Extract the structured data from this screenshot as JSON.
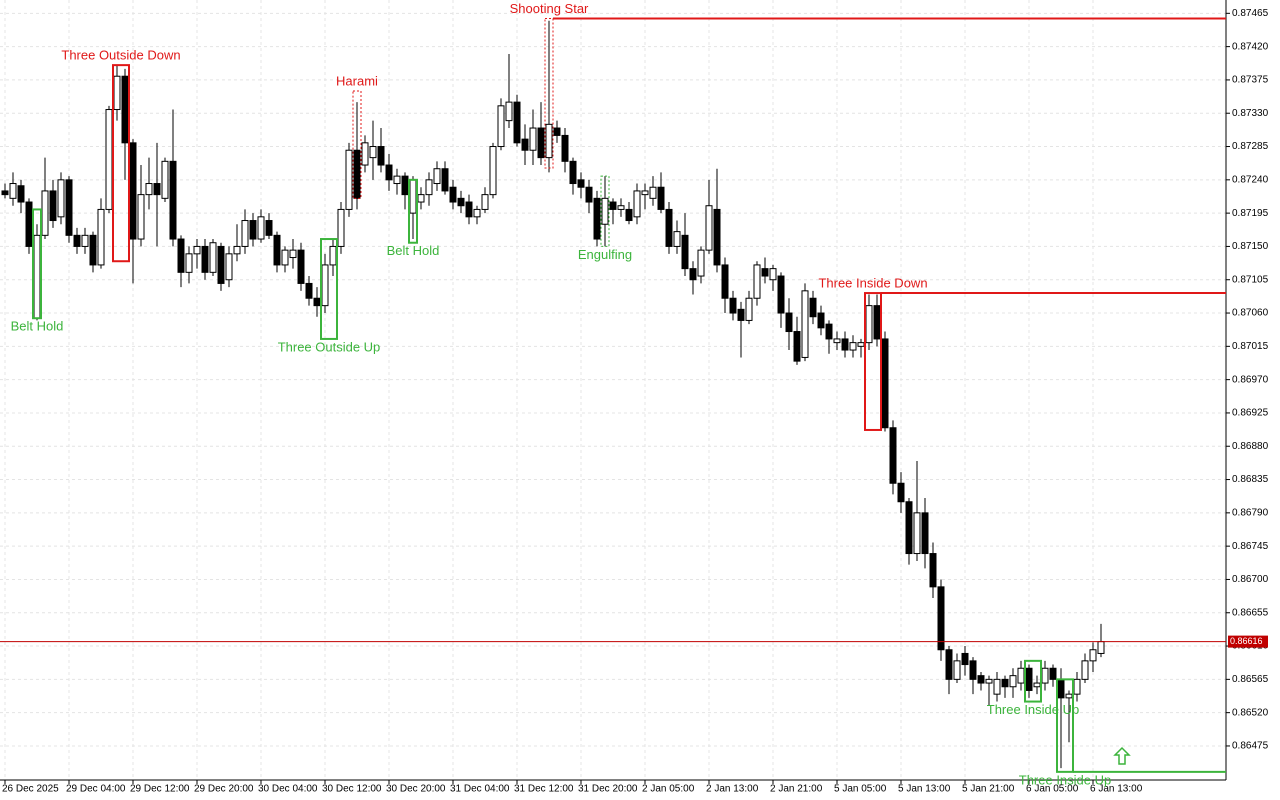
{
  "chart_data": {
    "type": "candlestick",
    "ylim": [
      0.86429,
      0.87483
    ],
    "yticks": [
      0.87465,
      {
        "value": 0.8742,
        "label": "0.87420"
      },
      0.87375,
      {
        "value": 0.8733,
        "label": "0.87330"
      },
      0.87285,
      {
        "value": 0.8724,
        "label": "0.87240"
      },
      0.87195,
      {
        "value": 0.8715,
        "label": "0.87150"
      },
      0.87105,
      {
        "value": 0.8706,
        "label": "0.87060"
      },
      0.87015,
      {
        "value": 0.8697,
        "label": "0.86970"
      },
      0.86925,
      {
        "value": 0.8688,
        "label": "0.86880"
      },
      0.86835,
      {
        "value": 0.8679,
        "label": "0.86790"
      },
      0.86745,
      {
        "value": 0.867,
        "label": "0.86700"
      },
      0.86655,
      {
        "value": 0.8661,
        "label": "0.86610"
      },
      0.86565,
      {
        "value": 0.8652,
        "label": "0.86520"
      },
      0.86475
    ],
    "grid": true,
    "current_price": 0.86616,
    "current_price_color": "#c00000",
    "bull_color": "#ffffff",
    "bear_color": "#000000",
    "categories": [
      "26 Dec 2025",
      null,
      null,
      null,
      null,
      null,
      null,
      null,
      "29 Dec 04:00",
      null,
      null,
      null,
      null,
      null,
      null,
      null,
      "29 Dec 12:00",
      null,
      null,
      null,
      null,
      null,
      null,
      null,
      "29 Dec 20:00",
      null,
      null,
      null,
      null,
      null,
      null,
      null,
      "30 Dec 04:00",
      null,
      null,
      null,
      null,
      null,
      null,
      null,
      "30 Dec 12:00",
      null,
      null,
      null,
      null,
      null,
      null,
      null,
      "30 Dec 20:00",
      null,
      null,
      null,
      null,
      null,
      null,
      null,
      "31 Dec 04:00",
      null,
      null,
      null,
      null,
      null,
      null,
      null,
      "31 Dec 12:00",
      null,
      null,
      null,
      null,
      null,
      null,
      null,
      "31 Dec 20:00",
      null,
      null,
      null,
      null,
      null,
      null,
      null,
      "2 Jan 05:00",
      null,
      null,
      null,
      null,
      null,
      null,
      null,
      "2 Jan 13:00",
      null,
      null,
      null,
      null,
      null,
      null,
      null,
      "2 Jan 21:00",
      null,
      null,
      null,
      null,
      null,
      null,
      null,
      "5 Jan 05:00",
      null,
      null,
      null,
      null,
      null,
      null,
      null,
      "5 Jan 13:00",
      null,
      null,
      null,
      null,
      null,
      null,
      null,
      "5 Jan 21:00",
      null,
      null,
      null,
      null,
      null,
      null,
      null,
      "6 Jan 05:00",
      null,
      null,
      null,
      null,
      null,
      null,
      null,
      "6 Jan 13:00",
      null
    ],
    "candles": [
      [
        0.87225,
        0.87235,
        0.87215,
        0.8722
      ],
      [
        0.87215,
        0.8725,
        0.87205,
        0.87235
      ],
      [
        0.87232,
        0.8724,
        0.87195,
        0.8721
      ],
      [
        0.8721,
        0.87215,
        0.8714,
        0.8715
      ],
      [
        0.87053,
        0.8718,
        0.8705,
        0.87165
      ],
      [
        0.87165,
        0.8727,
        0.8716,
        0.87225
      ],
      [
        0.87225,
        0.8724,
        0.87175,
        0.87185
      ],
      [
        0.8719,
        0.8725,
        0.8718,
        0.8724
      ],
      [
        0.8724,
        0.87245,
        0.87155,
        0.87165
      ],
      [
        0.87165,
        0.87175,
        0.8714,
        0.8715
      ],
      [
        0.8715,
        0.87175,
        0.8714,
        0.87165
      ],
      [
        0.87165,
        0.8717,
        0.87115,
        0.87125
      ],
      [
        0.87125,
        0.87215,
        0.8712,
        0.872
      ],
      [
        0.872,
        0.8734,
        0.87195,
        0.87335
      ],
      [
        0.87335,
        0.87395,
        0.8732,
        0.8738
      ],
      [
        0.8738,
        0.8739,
        0.8724,
        0.8729
      ],
      [
        0.8729,
        0.87295,
        0.871,
        0.8716
      ],
      [
        0.8716,
        0.8726,
        0.8715,
        0.8722
      ],
      [
        0.8722,
        0.8727,
        0.872,
        0.87235
      ],
      [
        0.87235,
        0.8729,
        0.8715,
        0.8722
      ],
      [
        0.87215,
        0.8727,
        0.8721,
        0.87265
      ],
      [
        0.87265,
        0.87335,
        0.8715,
        0.8716
      ],
      [
        0.8716,
        0.87165,
        0.87095,
        0.87115
      ],
      [
        0.87115,
        0.8715,
        0.871,
        0.8714
      ],
      [
        0.8714,
        0.8716,
        0.8712,
        0.8715
      ],
      [
        0.8715,
        0.8716,
        0.87105,
        0.87115
      ],
      [
        0.87115,
        0.8716,
        0.8711,
        0.87155
      ],
      [
        0.8715,
        0.87155,
        0.8709,
        0.871
      ],
      [
        0.87105,
        0.8715,
        0.87095,
        0.8714
      ],
      [
        0.8714,
        0.8718,
        0.8713,
        0.8715
      ],
      [
        0.8715,
        0.872,
        0.8714,
        0.87185
      ],
      [
        0.87185,
        0.87195,
        0.8715,
        0.8716
      ],
      [
        0.8716,
        0.872,
        0.87155,
        0.8719
      ],
      [
        0.87185,
        0.87195,
        0.8716,
        0.87165
      ],
      [
        0.87165,
        0.8717,
        0.87115,
        0.87125
      ],
      [
        0.87125,
        0.8715,
        0.87115,
        0.87145
      ],
      [
        0.87135,
        0.8716,
        0.8712,
        0.87145
      ],
      [
        0.87145,
        0.87155,
        0.8709,
        0.871
      ],
      [
        0.871,
        0.8711,
        0.8707,
        0.8708
      ],
      [
        0.8708,
        0.87095,
        0.87055,
        0.8707
      ],
      [
        0.8707,
        0.8714,
        0.8706,
        0.87125
      ],
      [
        0.87125,
        0.8716,
        0.8711,
        0.8715
      ],
      [
        0.8715,
        0.8721,
        0.8714,
        0.872
      ],
      [
        0.872,
        0.8729,
        0.8719,
        0.8728
      ],
      [
        0.8728,
        0.87345,
        0.872,
        0.87215
      ],
      [
        0.8726,
        0.873,
        0.8725,
        0.8729
      ],
      [
        0.8727,
        0.8732,
        0.8724,
        0.87285
      ],
      [
        0.87285,
        0.8731,
        0.8725,
        0.8726
      ],
      [
        0.8726,
        0.87275,
        0.87225,
        0.8724
      ],
      [
        0.87235,
        0.87255,
        0.8722,
        0.87245
      ],
      [
        0.87245,
        0.8725,
        0.872,
        0.8722
      ],
      [
        0.87195,
        0.87245,
        0.8716,
        0.8724
      ],
      [
        0.8721,
        0.8723,
        0.872,
        0.8722
      ],
      [
        0.8722,
        0.8725,
        0.87205,
        0.8724
      ],
      [
        0.87235,
        0.87265,
        0.87225,
        0.87255
      ],
      [
        0.87255,
        0.87265,
        0.8722,
        0.87225
      ],
      [
        0.8723,
        0.8724,
        0.872,
        0.8721
      ],
      [
        0.87215,
        0.87225,
        0.87195,
        0.87205
      ],
      [
        0.8721,
        0.8722,
        0.8718,
        0.8719
      ],
      [
        0.8719,
        0.87205,
        0.8718,
        0.872
      ],
      [
        0.872,
        0.8723,
        0.87195,
        0.8722
      ],
      [
        0.8722,
        0.8729,
        0.87215,
        0.87285
      ],
      [
        0.87285,
        0.8735,
        0.8728,
        0.8734
      ],
      [
        0.8732,
        0.8741,
        0.8731,
        0.87345
      ],
      [
        0.87345,
        0.87355,
        0.87285,
        0.8729
      ],
      [
        0.87295,
        0.87315,
        0.8726,
        0.8728
      ],
      [
        0.8728,
        0.87335,
        0.8726,
        0.8731
      ],
      [
        0.8731,
        0.87345,
        0.8726,
        0.8727
      ],
      [
        0.8727,
        0.87455,
        0.8725,
        0.87315
      ],
      [
        0.8731,
        0.8732,
        0.8729,
        0.873
      ],
      [
        0.873,
        0.8731,
        0.8725,
        0.87265
      ],
      [
        0.87265,
        0.8727,
        0.8722,
        0.87235
      ],
      [
        0.8724,
        0.8725,
        0.87215,
        0.8723
      ],
      [
        0.8723,
        0.8724,
        0.87195,
        0.8721
      ],
      [
        0.87215,
        0.87225,
        0.8715,
        0.8716
      ],
      [
        0.8718,
        0.87245,
        0.8715,
        0.87215
      ],
      [
        0.8721,
        0.87215,
        0.8718,
        0.872
      ],
      [
        0.872,
        0.87215,
        0.8719,
        0.87205
      ],
      [
        0.872,
        0.8721,
        0.8718,
        0.87185
      ],
      [
        0.8719,
        0.87235,
        0.8718,
        0.87225
      ],
      [
        0.8722,
        0.87235,
        0.872,
        0.87225
      ],
      [
        0.87215,
        0.87245,
        0.87205,
        0.8723
      ],
      [
        0.8723,
        0.8725,
        0.87195,
        0.872
      ],
      [
        0.872,
        0.8721,
        0.8714,
        0.8715
      ],
      [
        0.8715,
        0.87185,
        0.8714,
        0.8717
      ],
      [
        0.87165,
        0.87195,
        0.8711,
        0.8712
      ],
      [
        0.8712,
        0.8713,
        0.87085,
        0.87105
      ],
      [
        0.8711,
        0.8715,
        0.871,
        0.87145
      ],
      [
        0.87145,
        0.8724,
        0.8714,
        0.87205
      ],
      [
        0.872,
        0.87255,
        0.87115,
        0.87125
      ],
      [
        0.87125,
        0.87135,
        0.8706,
        0.8708
      ],
      [
        0.8708,
        0.8709,
        0.8705,
        0.8706
      ],
      [
        0.87065,
        0.87075,
        0.87,
        0.8705
      ],
      [
        0.8705,
        0.8709,
        0.87045,
        0.8708
      ],
      [
        0.8708,
        0.8713,
        0.8707,
        0.87125
      ],
      [
        0.8712,
        0.87135,
        0.871,
        0.8711
      ],
      [
        0.87105,
        0.87125,
        0.8709,
        0.8712
      ],
      [
        0.8711,
        0.87115,
        0.8704,
        0.8706
      ],
      [
        0.8706,
        0.8708,
        0.8701,
        0.87035
      ],
      [
        0.87035,
        0.87055,
        0.8699,
        0.86995
      ],
      [
        0.87,
        0.871,
        0.86995,
        0.8709
      ],
      [
        0.8708,
        0.8709,
        0.87045,
        0.87055
      ],
      [
        0.8706,
        0.8707,
        0.8703,
        0.8704
      ],
      [
        0.87045,
        0.8705,
        0.87005,
        0.87025
      ],
      [
        0.8702,
        0.87035,
        0.8701,
        0.87025
      ],
      [
        0.87025,
        0.87035,
        0.87,
        0.8701
      ],
      [
        0.8701,
        0.8703,
        0.87,
        0.8702
      ],
      [
        0.87015,
        0.87025,
        0.87,
        0.8702
      ],
      [
        0.8702,
        0.87085,
        0.8701,
        0.8707
      ],
      [
        0.8707,
        0.87085,
        0.87015,
        0.87025
      ],
      [
        0.87025,
        0.87035,
        0.869,
        0.86905
      ],
      [
        0.86905,
        0.86915,
        0.86815,
        0.8683
      ],
      [
        0.8683,
        0.86845,
        0.8679,
        0.86805
      ],
      [
        0.86805,
        0.8681,
        0.8672,
        0.86735
      ],
      [
        0.86735,
        0.8686,
        0.86725,
        0.8679
      ],
      [
        0.8679,
        0.8681,
        0.86715,
        0.86735
      ],
      [
        0.86735,
        0.8675,
        0.86675,
        0.8669
      ],
      [
        0.8669,
        0.867,
        0.8659,
        0.86605
      ],
      [
        0.86605,
        0.8661,
        0.86545,
        0.86565
      ],
      [
        0.86565,
        0.866,
        0.8656,
        0.8659
      ],
      [
        0.866,
        0.8661,
        0.8657,
        0.86585
      ],
      [
        0.8659,
        0.86595,
        0.86545,
        0.86565
      ],
      [
        0.8657,
        0.86575,
        0.8655,
        0.8656
      ],
      [
        0.8656,
        0.8657,
        0.8653,
        0.86565
      ],
      [
        0.86545,
        0.86575,
        0.86535,
        0.86565
      ],
      [
        0.86565,
        0.8657,
        0.8654,
        0.86555
      ],
      [
        0.86555,
        0.8658,
        0.8654,
        0.8657
      ],
      [
        0.8656,
        0.8659,
        0.8655,
        0.8658
      ],
      [
        0.8658,
        0.86585,
        0.8654,
        0.8655
      ],
      [
        0.86555,
        0.8657,
        0.86545,
        0.8656
      ],
      [
        0.8656,
        0.8659,
        0.8655,
        0.8658
      ],
      [
        0.8658,
        0.86585,
        0.86555,
        0.86565
      ],
      [
        0.86565,
        0.8658,
        0.86445,
        0.8654
      ],
      [
        0.8654,
        0.8655,
        0.8648,
        0.86545
      ],
      [
        0.86545,
        0.86575,
        0.86535,
        0.86565
      ],
      [
        0.86565,
        0.866,
        0.8656,
        0.8659
      ],
      [
        0.8659,
        0.86615,
        0.86575,
        0.86605
      ],
      [
        0.866,
        0.8664,
        0.86595,
        0.86616
      ]
    ],
    "patterns": [
      {
        "label": "Belt Hold",
        "color": "#3cb43c",
        "start": 4,
        "end": 4,
        "top": 0.872,
        "bottom": 0.87053,
        "style": "solid",
        "label_position": "below"
      },
      {
        "label": "Three Outside Down",
        "color": "#e01818",
        "start": 14,
        "end": 15,
        "top": 0.87395,
        "bottom": 0.8713,
        "style": "solid",
        "label_position": "above"
      },
      {
        "label": "Harami",
        "color": "#e01818",
        "start": 44,
        "end": 44,
        "top": 0.8736,
        "bottom": 0.87215,
        "style": "dashed",
        "label_position": "above"
      },
      {
        "label": "Three Outside Up",
        "color": "#3cb43c",
        "start": 40,
        "end": 41,
        "top": 0.8716,
        "bottom": 0.87025,
        "style": "solid",
        "label_position": "below"
      },
      {
        "label": "Belt Hold",
        "color": "#3cb43c",
        "start": 51,
        "end": 51,
        "top": 0.8724,
        "bottom": 0.87155,
        "style": "solid",
        "label_position": "below"
      },
      {
        "label": "Shooting Star",
        "color": "#e01818",
        "start": 68,
        "end": 68,
        "top": 0.87458,
        "bottom": 0.87256,
        "style": "dashed",
        "label_position": "above",
        "level": 0.87458
      },
      {
        "label": "Engulfing",
        "color": "#3cb43c",
        "start": 75,
        "end": 75,
        "top": 0.87245,
        "bottom": 0.8715,
        "style": "dashed",
        "label_position": "below"
      },
      {
        "label": "Three Inside Down",
        "color": "#e01818",
        "start": 108,
        "end": 109,
        "top": 0.87087,
        "bottom": 0.86902,
        "style": "solid",
        "label_position": "above",
        "level": 0.87087
      },
      {
        "label": "Three Inside Up",
        "color": "#3cb43c",
        "start": 128,
        "end": 129,
        "top": 0.8659,
        "bottom": 0.86535,
        "style": "solid",
        "label_position": "below"
      },
      {
        "label": "Three Inside Up",
        "color": "#3cb43c",
        "start": 132,
        "end": 133,
        "top": 0.86565,
        "bottom": 0.8644,
        "style": "solid",
        "label_position": "below",
        "level": 0.8644
      }
    ]
  }
}
